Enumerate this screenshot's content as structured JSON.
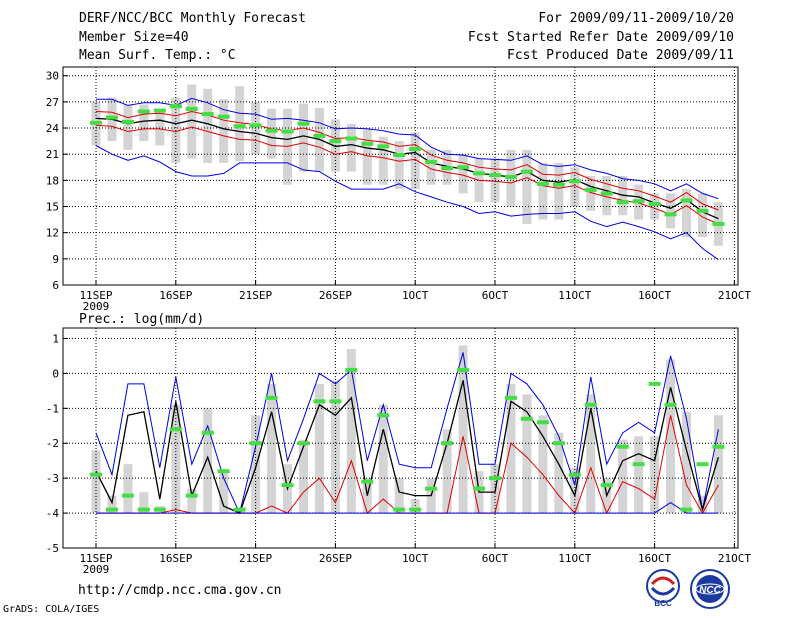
{
  "header": {
    "title": "DERF/NCC/BCC Monthly Forecast",
    "member_size": "Member Size=40",
    "variable": "Mean Surf. Temp.: °C",
    "period": "For 2009/09/11-2009/10/20",
    "started": "Fcst Started Refer Date 2009/09/10",
    "produced": "Fcst Produced Date 2009/09/11"
  },
  "footer": {
    "url": "http://cmdp.ncc.cma.gov.cn",
    "grads": "GrADS: COLA/IGES",
    "logo_left": "BCC",
    "logo_right": "NCC"
  },
  "colors": {
    "envelope": "#0000dd",
    "ensemble_mean": "#000000",
    "spread_band": "#dd0000",
    "observed": "#44dd44",
    "member_bar": "#d4d4d4",
    "grid": "#000000"
  },
  "chart_data": [
    {
      "type": "line",
      "title": "Mean Surf. Temp.: °C",
      "x_days": [
        0,
        1,
        2,
        3,
        4,
        5,
        6,
        7,
        8,
        9,
        10,
        11,
        12,
        13,
        14,
        15,
        16,
        17,
        18,
        19,
        20,
        21,
        22,
        23,
        24,
        25,
        26,
        27,
        28,
        29,
        30,
        31,
        32,
        33,
        34,
        35,
        36,
        37,
        38,
        39
      ],
      "xticks": [
        {
          "day": 0,
          "label": "11SEP",
          "sub": "2009"
        },
        {
          "day": 5,
          "label": "16SEP"
        },
        {
          "day": 10,
          "label": "21SEP"
        },
        {
          "day": 15,
          "label": "26SEP"
        },
        {
          "day": 20,
          "label": "1OCT"
        },
        {
          "day": 25,
          "label": "6OCT"
        },
        {
          "day": 30,
          "label": "11OCT"
        },
        {
          "day": 35,
          "label": "16OCT"
        },
        {
          "day": 40,
          "label": "21OCT"
        }
      ],
      "ylim": [
        6,
        31
      ],
      "yticks": [
        6,
        9,
        12,
        15,
        18,
        21,
        24,
        27,
        30
      ],
      "series": [
        {
          "name": "max",
          "values": [
            27.3,
            27.3,
            26.6,
            26.9,
            26.9,
            26.6,
            27.4,
            26.9,
            26.1,
            25.7,
            25.6,
            25.0,
            25.1,
            24.9,
            24.6,
            23.9,
            24.0,
            23.9,
            23.7,
            23.3,
            23.2,
            21.8,
            21.0,
            20.9,
            20.5,
            20.4,
            20.3,
            20.8,
            19.8,
            19.6,
            19.8,
            19.2,
            18.8,
            18.2,
            18.0,
            17.6,
            16.8,
            17.6,
            16.5,
            15.9
          ]
        },
        {
          "name": "upper",
          "values": [
            25.9,
            25.8,
            25.2,
            25.6,
            25.7,
            25.4,
            25.9,
            25.5,
            24.9,
            24.6,
            24.4,
            23.9,
            23.7,
            24.0,
            23.5,
            22.8,
            22.9,
            22.6,
            22.4,
            21.9,
            22.1,
            20.9,
            20.3,
            20.0,
            19.5,
            19.3,
            19.2,
            19.8,
            18.7,
            18.6,
            18.9,
            18.1,
            17.6,
            17.1,
            16.8,
            16.2,
            15.5,
            16.6,
            15.3,
            14.6
          ]
        },
        {
          "name": "mean",
          "values": [
            25.1,
            25.0,
            24.5,
            24.8,
            24.9,
            24.5,
            24.9,
            24.5,
            23.9,
            23.6,
            23.4,
            22.9,
            22.7,
            23.1,
            22.7,
            21.9,
            22.1,
            21.7,
            21.5,
            21.0,
            21.2,
            20.0,
            19.6,
            19.3,
            18.8,
            18.6,
            18.4,
            19.0,
            18.0,
            17.8,
            18.1,
            17.3,
            16.8,
            16.3,
            16.1,
            15.4,
            14.8,
            15.8,
            14.4,
            13.6
          ]
        },
        {
          "name": "lower",
          "values": [
            24.3,
            24.2,
            23.6,
            23.9,
            23.9,
            23.6,
            24.1,
            23.6,
            23.1,
            22.7,
            22.6,
            22.0,
            21.9,
            22.3,
            21.8,
            21.0,
            21.3,
            20.8,
            20.6,
            20.2,
            20.4,
            19.3,
            18.9,
            18.6,
            18.0,
            17.9,
            17.7,
            18.3,
            17.4,
            17.1,
            17.4,
            16.6,
            16.1,
            15.7,
            15.4,
            14.8,
            14.1,
            15.1,
            13.8,
            13.0
          ]
        },
        {
          "name": "min",
          "values": [
            22.0,
            21.0,
            20.3,
            20.8,
            20.1,
            19.0,
            18.5,
            18.5,
            18.8,
            20.0,
            20.0,
            20.0,
            20.0,
            19.2,
            19.0,
            17.9,
            17.0,
            17.0,
            17.0,
            17.6,
            16.7,
            16.1,
            15.5,
            15.0,
            14.2,
            14.4,
            13.9,
            14.1,
            14.2,
            14.2,
            14.4,
            13.3,
            12.7,
            13.2,
            12.7,
            12.1,
            11.3,
            12.0,
            10.2,
            8.9
          ]
        },
        {
          "name": "observed",
          "values": [
            24.6,
            25.2,
            24.7,
            25.9,
            26.0,
            26.5,
            26.2,
            25.6,
            25.3,
            24.2,
            24.3,
            23.7,
            23.6,
            24.5,
            23.1,
            22.5,
            22.8,
            22.2,
            21.9,
            20.9,
            21.6,
            20.1,
            19.4,
            19.5,
            18.8,
            18.6,
            18.4,
            19.0,
            17.6,
            17.5,
            17.9,
            16.9,
            16.5,
            15.5,
            15.6,
            15.3,
            14.1,
            15.7,
            14.5,
            13.0
          ]
        }
      ],
      "bars": [
        {
          "lo": 22.0,
          "hi": 27.0
        },
        {
          "lo": 22.5,
          "hi": 27.5
        },
        {
          "lo": 21.5,
          "hi": 26.7
        },
        {
          "lo": 22.5,
          "hi": 26.7
        },
        {
          "lo": 22.0,
          "hi": 26.2
        },
        {
          "lo": 20.0,
          "hi": 27.5
        },
        {
          "lo": 20.5,
          "hi": 29.0
        },
        {
          "lo": 20.0,
          "hi": 28.5
        },
        {
          "lo": 20.0,
          "hi": 27.3
        },
        {
          "lo": 20.2,
          "hi": 28.8
        },
        {
          "lo": 21.0,
          "hi": 27.0
        },
        {
          "lo": 20.5,
          "hi": 26.2
        },
        {
          "lo": 17.5,
          "hi": 26.2
        },
        {
          "lo": 19.0,
          "hi": 26.8
        },
        {
          "lo": 19.0,
          "hi": 26.3
        },
        {
          "lo": 19.0,
          "hi": 25.0
        },
        {
          "lo": 19.0,
          "hi": 24.5
        },
        {
          "lo": 17.5,
          "hi": 23.8
        },
        {
          "lo": 17.5,
          "hi": 23.0
        },
        {
          "lo": 17.0,
          "hi": 22.5
        },
        {
          "lo": 17.0,
          "hi": 23.5
        },
        {
          "lo": 17.5,
          "hi": 21.5
        },
        {
          "lo": 17.5,
          "hi": 21.5
        },
        {
          "lo": 16.5,
          "hi": 21.0
        },
        {
          "lo": 15.5,
          "hi": 20.5
        },
        {
          "lo": 15.5,
          "hi": 20.5
        },
        {
          "lo": 15.0,
          "hi": 21.5
        },
        {
          "lo": 13.0,
          "hi": 21.5
        },
        {
          "lo": 13.5,
          "hi": 20.0
        },
        {
          "lo": 13.5,
          "hi": 20.0
        },
        {
          "lo": 15.0,
          "hi": 19.5
        },
        {
          "lo": 14.5,
          "hi": 18.5
        },
        {
          "lo": 14.0,
          "hi": 18.5
        },
        {
          "lo": 14.0,
          "hi": 18.5
        },
        {
          "lo": 13.5,
          "hi": 17.5
        },
        {
          "lo": 13.5,
          "hi": 16.5
        },
        {
          "lo": 12.5,
          "hi": 16.5
        },
        {
          "lo": 11.5,
          "hi": 17.0
        },
        {
          "lo": 11.5,
          "hi": 16.5
        },
        {
          "lo": 10.5,
          "hi": 15.5
        }
      ]
    },
    {
      "type": "line",
      "title": "Prec.: log(mm/d)",
      "x_days": [
        0,
        1,
        2,
        3,
        4,
        5,
        6,
        7,
        8,
        9,
        10,
        11,
        12,
        13,
        14,
        15,
        16,
        17,
        18,
        19,
        20,
        21,
        22,
        23,
        24,
        25,
        26,
        27,
        28,
        29,
        30,
        31,
        32,
        33,
        34,
        35,
        36,
        37,
        38,
        39
      ],
      "xticks": [
        {
          "day": 0,
          "label": "11SEP",
          "sub": "2009"
        },
        {
          "day": 5,
          "label": "16SEP"
        },
        {
          "day": 10,
          "label": "21SEP"
        },
        {
          "day": 15,
          "label": "26SEP"
        },
        {
          "day": 20,
          "label": "1OCT"
        },
        {
          "day": 25,
          "label": "6OCT"
        },
        {
          "day": 30,
          "label": "11OCT"
        },
        {
          "day": 35,
          "label": "16OCT"
        },
        {
          "day": 40,
          "label": "21OCT"
        }
      ],
      "ylim": [
        -5,
        1.3
      ],
      "yticks": [
        -5,
        -4,
        -3,
        -2,
        -1,
        0,
        1
      ],
      "series": [
        {
          "name": "max",
          "values": [
            -1.7,
            -2.9,
            -0.3,
            -0.3,
            -2.7,
            -0.1,
            -2.6,
            -1.5,
            -3.0,
            -4.0,
            -2.1,
            -0.0,
            -2.5,
            -1.3,
            -0.0,
            -0.3,
            0.1,
            -2.5,
            -0.9,
            -2.6,
            -2.7,
            -2.7,
            -1.0,
            0.6,
            -2.6,
            -2.6,
            0.0,
            -0.3,
            -0.9,
            -1.8,
            -3.2,
            -0.1,
            -2.6,
            -1.7,
            -1.4,
            -1.7,
            0.5,
            -1.3,
            -3.9,
            -1.6
          ]
        },
        {
          "name": "mean",
          "values": [
            -2.8,
            -3.7,
            -1.2,
            -1.1,
            -3.6,
            -0.8,
            -3.5,
            -2.4,
            -3.8,
            -4.0,
            -2.7,
            -1.1,
            -3.3,
            -2.1,
            -0.9,
            -1.2,
            -0.7,
            -3.5,
            -1.6,
            -3.4,
            -3.5,
            -3.5,
            -2.0,
            -0.2,
            -3.4,
            -3.4,
            -0.8,
            -1.1,
            -1.8,
            -2.6,
            -3.5,
            -1.0,
            -3.5,
            -2.5,
            -2.3,
            -2.5,
            -0.4,
            -2.2,
            -3.9,
            -2.4
          ]
        },
        {
          "name": "lower",
          "values": [
            -4.0,
            -4.0,
            -4.0,
            -4.0,
            -4.0,
            -3.9,
            -4.0,
            -4.0,
            -4.0,
            -4.0,
            -4.0,
            -3.8,
            -4.0,
            -3.4,
            -3.0,
            -3.7,
            -2.5,
            -4.0,
            -3.6,
            -4.0,
            -4.0,
            -4.0,
            -4.0,
            -1.8,
            -4.0,
            -4.0,
            -2.0,
            -2.4,
            -2.9,
            -3.5,
            -4.0,
            -2.7,
            -4.0,
            -3.1,
            -3.3,
            -3.6,
            -1.2,
            -3.2,
            -4.0,
            -3.2
          ]
        },
        {
          "name": "min",
          "values": [
            -4.0,
            -4.0,
            -4.0,
            -4.0,
            -4.0,
            -4.0,
            -4.0,
            -4.0,
            -4.0,
            -4.0,
            -4.0,
            -4.0,
            -4.0,
            -4.0,
            -4.0,
            -4.0,
            -4.0,
            -4.0,
            -4.0,
            -4.0,
            -4.0,
            -4.0,
            -4.0,
            -4.0,
            -4.0,
            -4.0,
            -4.0,
            -4.0,
            -4.0,
            -4.0,
            -4.0,
            -4.0,
            -4.0,
            -4.0,
            -4.0,
            -4.0,
            -3.7,
            -4.0,
            -4.0,
            -4.0
          ]
        },
        {
          "name": "observed",
          "values": [
            -2.9,
            -3.9,
            -3.5,
            -3.9,
            -3.9,
            -1.6,
            -3.5,
            -1.7,
            -2.8,
            -3.9,
            -2.0,
            -0.7,
            -3.2,
            -2.0,
            -0.8,
            -0.8,
            0.1,
            -3.1,
            -1.2,
            -3.9,
            -3.9,
            -3.3,
            -2.0,
            0.1,
            -3.3,
            -3.0,
            -0.7,
            -1.3,
            -1.4,
            -2.0,
            -2.9,
            -0.9,
            -3.2,
            -2.1,
            -2.6,
            -0.3,
            -0.9,
            -3.9,
            -2.6,
            -2.1
          ]
        }
      ],
      "bars": [
        {
          "lo": -4.0,
          "hi": -2.2
        },
        {
          "lo": -4.0,
          "hi": -3.5
        },
        {
          "lo": -4.0,
          "hi": -2.6
        },
        {
          "lo": -4.0,
          "hi": -3.4
        },
        {
          "lo": -4.0,
          "hi": -3.8
        },
        {
          "lo": -4.0,
          "hi": -0.9
        },
        {
          "lo": -4.0,
          "hi": -3.3
        },
        {
          "lo": -4.0,
          "hi": -1.0
        },
        {
          "lo": -4.0,
          "hi": -2.8
        },
        {
          "lo": -4.0,
          "hi": -3.9
        },
        {
          "lo": -4.0,
          "hi": -1.2
        },
        {
          "lo": -4.0,
          "hi": -0.3
        },
        {
          "lo": -4.0,
          "hi": -2.6
        },
        {
          "lo": -4.0,
          "hi": -1.9
        },
        {
          "lo": -4.0,
          "hi": -0.3
        },
        {
          "lo": -4.0,
          "hi": -0.2
        },
        {
          "lo": -4.0,
          "hi": 0.7
        },
        {
          "lo": -4.0,
          "hi": -3.0
        },
        {
          "lo": -4.0,
          "hi": -0.9
        },
        {
          "lo": -4.0,
          "hi": -3.0
        },
        {
          "lo": -4.0,
          "hi": -3.6
        },
        {
          "lo": -4.0,
          "hi": -3.0
        },
        {
          "lo": -4.0,
          "hi": -1.6
        },
        {
          "lo": -4.0,
          "hi": 0.8
        },
        {
          "lo": -4.0,
          "hi": -2.8
        },
        {
          "lo": -4.0,
          "hi": -2.6
        },
        {
          "lo": -4.0,
          "hi": -0.3
        },
        {
          "lo": -4.0,
          "hi": -0.6
        },
        {
          "lo": -4.0,
          "hi": -1.2
        },
        {
          "lo": -4.0,
          "hi": -1.7
        },
        {
          "lo": -4.0,
          "hi": -2.7
        },
        {
          "lo": -4.0,
          "hi": -0.6
        },
        {
          "lo": -4.0,
          "hi": -3.0
        },
        {
          "lo": -4.0,
          "hi": -1.9
        },
        {
          "lo": -4.0,
          "hi": -1.8
        },
        {
          "lo": -4.0,
          "hi": -1.8
        },
        {
          "lo": -4.0,
          "hi": 0.4
        },
        {
          "lo": -4.0,
          "hi": -1.1
        },
        {
          "lo": -4.0,
          "hi": -3.5
        },
        {
          "lo": -4.0,
          "hi": -1.2
        }
      ]
    }
  ]
}
